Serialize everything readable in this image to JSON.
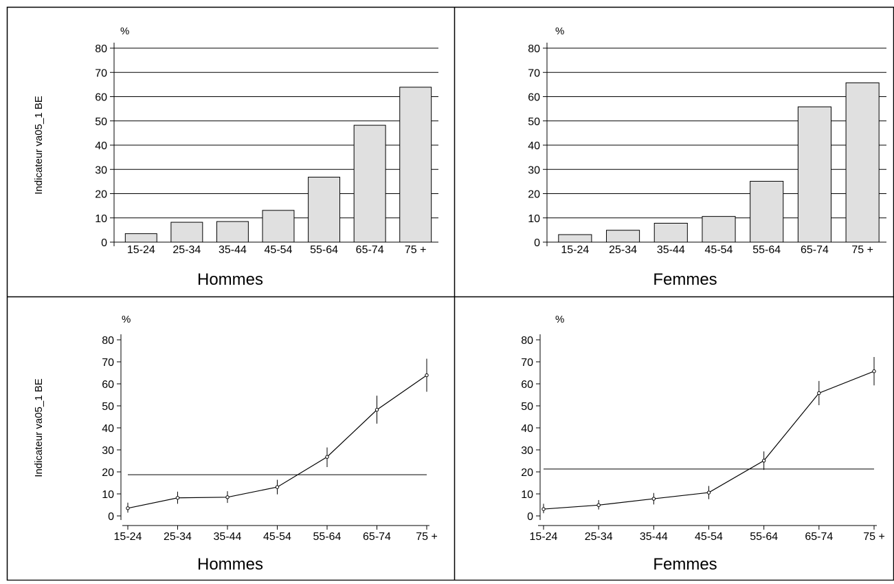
{
  "colors": {
    "bar_fill": "#e0e0e0",
    "stroke": "#000000",
    "background": "#ffffff"
  },
  "chart_data": [
    {
      "type": "bar",
      "title": "Hommes",
      "ylabel": "Indicateur va05_1  BE",
      "unit": "%",
      "categories": [
        "15-24",
        "25-34",
        "35-44",
        "45-54",
        "55-64",
        "65-74",
        "75 +"
      ],
      "values": [
        3.5,
        8.2,
        8.5,
        13.1,
        26.8,
        48.2,
        63.9
      ],
      "ylim": [
        0,
        80
      ],
      "yticks": [
        "0",
        "10",
        "20",
        "30",
        "40",
        "50",
        "60",
        "70",
        "80"
      ],
      "grid": true
    },
    {
      "type": "bar",
      "title": "Femmes",
      "ylabel": "",
      "unit": "%",
      "categories": [
        "15-24",
        "25-34",
        "35-44",
        "45-54",
        "55-64",
        "65-74",
        "75 +"
      ],
      "values": [
        3.1,
        4.9,
        7.8,
        10.6,
        25.1,
        55.8,
        65.7
      ],
      "ylim": [
        0,
        80
      ],
      "yticks": [
        "0",
        "10",
        "20",
        "30",
        "40",
        "50",
        "60",
        "70",
        "80"
      ],
      "grid": true
    },
    {
      "type": "line",
      "title": "Hommes",
      "ylabel": "Indicateur va05_1  BE",
      "unit": "%",
      "categories": [
        "15-24",
        "25-34",
        "35-44",
        "45-54",
        "55-64",
        "65-74",
        "75 +"
      ],
      "values": [
        3.5,
        8.2,
        8.5,
        13.1,
        26.8,
        48.2,
        63.9
      ],
      "err_low": [
        1.5,
        5.5,
        5.9,
        9.8,
        22.2,
        41.9,
        56.4
      ],
      "err_high": [
        6.0,
        11.0,
        11.2,
        16.4,
        31.1,
        54.6,
        71.4
      ],
      "reference": 18.7,
      "ylim": [
        0,
        80
      ],
      "yticks": [
        "0",
        "10",
        "20",
        "30",
        "40",
        "50",
        "60",
        "70",
        "80"
      ],
      "grid": false
    },
    {
      "type": "line",
      "title": "Femmes",
      "ylabel": "",
      "unit": "%",
      "categories": [
        "15-24",
        "25-34",
        "35-44",
        "45-54",
        "55-64",
        "65-74",
        "75 +"
      ],
      "values": [
        3.1,
        4.9,
        7.8,
        10.6,
        25.1,
        55.8,
        65.7
      ],
      "err_low": [
        1.2,
        2.9,
        5.2,
        7.6,
        20.9,
        50.3,
        59.3
      ],
      "err_high": [
        5.5,
        7.2,
        10.4,
        13.6,
        29.3,
        61.3,
        72.2
      ],
      "reference": 21.3,
      "ylim": [
        0,
        80
      ],
      "yticks": [
        "0",
        "10",
        "20",
        "30",
        "40",
        "50",
        "60",
        "70",
        "80"
      ],
      "grid": false
    }
  ]
}
